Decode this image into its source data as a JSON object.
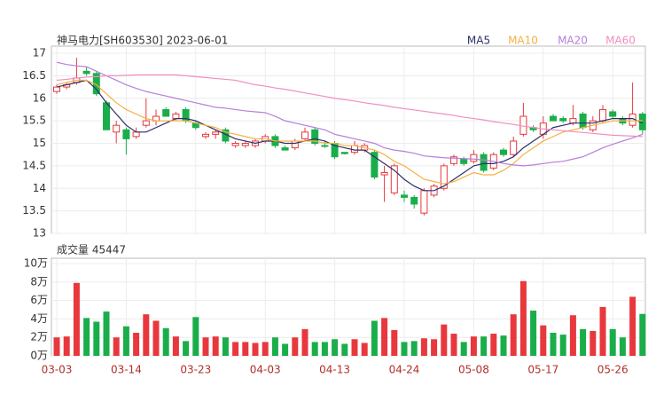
{
  "chart_data": [
    {
      "type": "candlestick",
      "title": "神马电力[SH603530] 2023-06-01",
      "categories": [
        "03-03",
        null,
        null,
        null,
        null,
        null,
        null,
        "03-14",
        null,
        null,
        null,
        null,
        null,
        null,
        "03-23",
        null,
        null,
        null,
        null,
        null,
        null,
        "04-03",
        null,
        null,
        null,
        null,
        null,
        null,
        "04-13",
        null,
        null,
        null,
        null,
        null,
        null,
        "04-24",
        null,
        null,
        null,
        null,
        null,
        null,
        "05-08",
        null,
        null,
        null,
        null,
        null,
        null,
        "05-17",
        null,
        null,
        null,
        null,
        null,
        null,
        "05-26",
        null,
        null,
        null
      ],
      "open": [
        16.15,
        16.25,
        16.35,
        16.6,
        16.55,
        15.9,
        15.25,
        15.3,
        15.15,
        15.4,
        15.5,
        15.75,
        15.55,
        15.75,
        15.45,
        15.15,
        15.2,
        15.3,
        14.95,
        14.95,
        14.95,
        15.05,
        15.15,
        14.9,
        14.9,
        15.1,
        15.3,
        14.95,
        15.0,
        14.8,
        14.8,
        14.85,
        14.8,
        14.3,
        13.9,
        13.85,
        13.8,
        13.45,
        13.85,
        14.0,
        14.55,
        14.65,
        14.6,
        14.75,
        14.45,
        14.85,
        14.75,
        15.2,
        15.35,
        15.2,
        15.6,
        15.55,
        15.45,
        15.65,
        15.3,
        15.5,
        15.7,
        15.55,
        15.4,
        15.65
      ],
      "high": [
        16.3,
        16.35,
        16.9,
        16.7,
        16.6,
        15.95,
        15.5,
        15.35,
        15.35,
        16.0,
        15.75,
        15.8,
        15.7,
        15.8,
        15.5,
        15.25,
        15.3,
        15.35,
        15.05,
        15.05,
        15.1,
        15.2,
        15.2,
        14.95,
        15.1,
        15.35,
        15.35,
        15.05,
        15.05,
        14.8,
        15.05,
        15.0,
        14.85,
        14.5,
        14.55,
        13.95,
        13.85,
        14.0,
        14.1,
        14.55,
        14.75,
        14.7,
        14.85,
        14.8,
        14.8,
        14.9,
        15.15,
        15.9,
        15.4,
        15.6,
        15.65,
        15.6,
        15.85,
        15.7,
        15.6,
        15.85,
        15.75,
        15.6,
        16.35,
        15.7
      ],
      "low": [
        16.1,
        16.2,
        16.3,
        16.5,
        16.05,
        15.3,
        15.0,
        14.75,
        15.1,
        15.35,
        15.4,
        15.6,
        15.5,
        15.45,
        15.3,
        15.1,
        15.1,
        15.0,
        14.9,
        14.9,
        14.9,
        15.0,
        14.9,
        14.85,
        14.85,
        15.05,
        14.95,
        14.9,
        14.65,
        14.75,
        14.75,
        14.8,
        14.2,
        13.7,
        13.85,
        13.7,
        13.55,
        13.4,
        13.8,
        13.95,
        14.5,
        14.5,
        14.55,
        14.35,
        14.4,
        14.7,
        14.7,
        15.15,
        15.25,
        15.1,
        15.5,
        15.45,
        15.4,
        15.3,
        15.25,
        15.45,
        15.55,
        15.4,
        15.35,
        15.2
      ],
      "close": [
        16.25,
        16.3,
        16.45,
        16.55,
        16.1,
        15.3,
        15.4,
        15.1,
        15.25,
        15.5,
        15.6,
        15.6,
        15.65,
        15.5,
        15.35,
        15.2,
        15.25,
        15.05,
        15.0,
        15.0,
        15.05,
        15.15,
        14.95,
        14.85,
        15.05,
        15.25,
        15.0,
        14.95,
        14.7,
        14.77,
        14.95,
        14.95,
        14.25,
        14.35,
        14.5,
        13.8,
        13.65,
        13.95,
        14.05,
        14.5,
        14.7,
        14.55,
        14.75,
        14.4,
        14.75,
        14.75,
        15.05,
        15.6,
        15.3,
        15.45,
        15.5,
        15.5,
        15.55,
        15.35,
        15.5,
        15.75,
        15.6,
        15.45,
        15.65,
        15.3
      ],
      "up_color": "#e8383d",
      "down_color": "#1aae4a",
      "series": [
        {
          "name": "MA5",
          "color": "#2b2f6b",
          "values": [
            16.25,
            16.3,
            16.35,
            16.4,
            16.2,
            15.9,
            15.65,
            15.4,
            15.25,
            15.25,
            15.35,
            15.45,
            15.55,
            15.55,
            15.5,
            15.4,
            15.3,
            15.2,
            15.1,
            15.05,
            15.0,
            15.05,
            15.05,
            15.0,
            15.0,
            15.05,
            15.1,
            15.05,
            14.95,
            14.9,
            14.85,
            14.85,
            14.7,
            14.55,
            14.4,
            14.2,
            14.05,
            13.95,
            13.95,
            14.05,
            14.2,
            14.35,
            14.5,
            14.55,
            14.55,
            14.6,
            14.7,
            14.9,
            15.05,
            15.2,
            15.35,
            15.4,
            15.45,
            15.45,
            15.45,
            15.5,
            15.55,
            15.55,
            15.55,
            15.45
          ]
        },
        {
          "name": "MA10",
          "color": "#f5b041",
          "values": [
            16.3,
            16.35,
            16.4,
            16.4,
            16.3,
            16.1,
            15.9,
            15.75,
            15.65,
            15.55,
            15.5,
            15.5,
            15.5,
            15.5,
            15.45,
            15.4,
            15.35,
            15.25,
            15.2,
            15.15,
            15.1,
            15.1,
            15.05,
            15.05,
            15.05,
            15.05,
            15.05,
            15.0,
            15.0,
            14.95,
            14.95,
            14.9,
            14.85,
            14.75,
            14.6,
            14.5,
            14.35,
            14.2,
            14.15,
            14.1,
            14.15,
            14.25,
            14.35,
            14.3,
            14.3,
            14.4,
            14.55,
            14.75,
            14.9,
            15.05,
            15.15,
            15.25,
            15.3,
            15.35,
            15.4,
            15.45,
            15.5,
            15.5,
            15.5,
            15.5
          ]
        },
        {
          "name": "MA20",
          "color": "#b57fdc",
          "values": [
            16.8,
            16.75,
            16.72,
            16.7,
            16.6,
            16.5,
            16.4,
            16.3,
            16.22,
            16.15,
            16.1,
            16.05,
            16.0,
            15.95,
            15.9,
            15.85,
            15.8,
            15.78,
            15.75,
            15.72,
            15.7,
            15.68,
            15.6,
            15.5,
            15.45,
            15.4,
            15.35,
            15.3,
            15.2,
            15.15,
            15.1,
            15.05,
            15.0,
            14.9,
            14.85,
            14.82,
            14.78,
            14.72,
            14.7,
            14.68,
            14.67,
            14.66,
            14.65,
            14.63,
            14.6,
            14.55,
            14.52,
            14.5,
            14.52,
            14.55,
            14.58,
            14.6,
            14.65,
            14.7,
            14.8,
            14.9,
            14.98,
            15.05,
            15.12,
            15.2
          ]
        },
        {
          "name": "MA60",
          "color": "#f08fc0",
          "values": [
            16.4,
            16.42,
            16.45,
            16.47,
            16.48,
            16.5,
            16.5,
            16.51,
            16.52,
            16.52,
            16.52,
            16.52,
            16.52,
            16.5,
            16.48,
            16.46,
            16.44,
            16.42,
            16.4,
            16.35,
            16.3,
            16.27,
            16.23,
            16.2,
            16.16,
            16.12,
            16.08,
            16.04,
            16.0,
            15.97,
            15.94,
            15.9,
            15.87,
            15.84,
            15.8,
            15.77,
            15.74,
            15.71,
            15.68,
            15.65,
            15.62,
            15.58,
            15.55,
            15.52,
            15.48,
            15.45,
            15.42,
            15.38,
            15.35,
            15.32,
            15.3,
            15.28,
            15.26,
            15.24,
            15.22,
            15.2,
            15.18,
            15.17,
            15.16,
            15.15
          ]
        }
      ],
      "ylim": [
        13,
        17
      ],
      "yticks": [
        13,
        13.5,
        14,
        14.5,
        15,
        15.5,
        16,
        16.5,
        17
      ],
      "grid": true
    },
    {
      "type": "bar",
      "title": "成交量 45447",
      "values": [
        2.0,
        2.1,
        7.9,
        4.1,
        3.7,
        4.8,
        2.0,
        3.2,
        2.5,
        4.5,
        3.8,
        3.0,
        2.1,
        1.6,
        4.2,
        2.0,
        2.1,
        2.0,
        1.5,
        1.5,
        1.4,
        1.5,
        2.0,
        1.3,
        2.0,
        2.9,
        1.5,
        1.5,
        1.8,
        1.3,
        1.8,
        1.4,
        3.8,
        4.1,
        2.8,
        1.5,
        1.6,
        1.9,
        1.8,
        3.4,
        2.4,
        1.5,
        2.1,
        2.1,
        2.4,
        2.2,
        4.5,
        8.1,
        4.9,
        3.3,
        2.5,
        2.3,
        4.4,
        2.9,
        2.7,
        5.3,
        2.9,
        2.0,
        6.4,
        4.5447
      ],
      "ylim": [
        0,
        10
      ],
      "yticks": [
        {
          "value": 0,
          "label": "0万"
        },
        {
          "value": 2,
          "label": "2万"
        },
        {
          "value": 4,
          "label": "4万"
        },
        {
          "value": 6,
          "label": "6万"
        },
        {
          "value": 8,
          "label": "8万"
        },
        {
          "value": 10,
          "label": "10万"
        }
      ],
      "grid": true
    }
  ]
}
